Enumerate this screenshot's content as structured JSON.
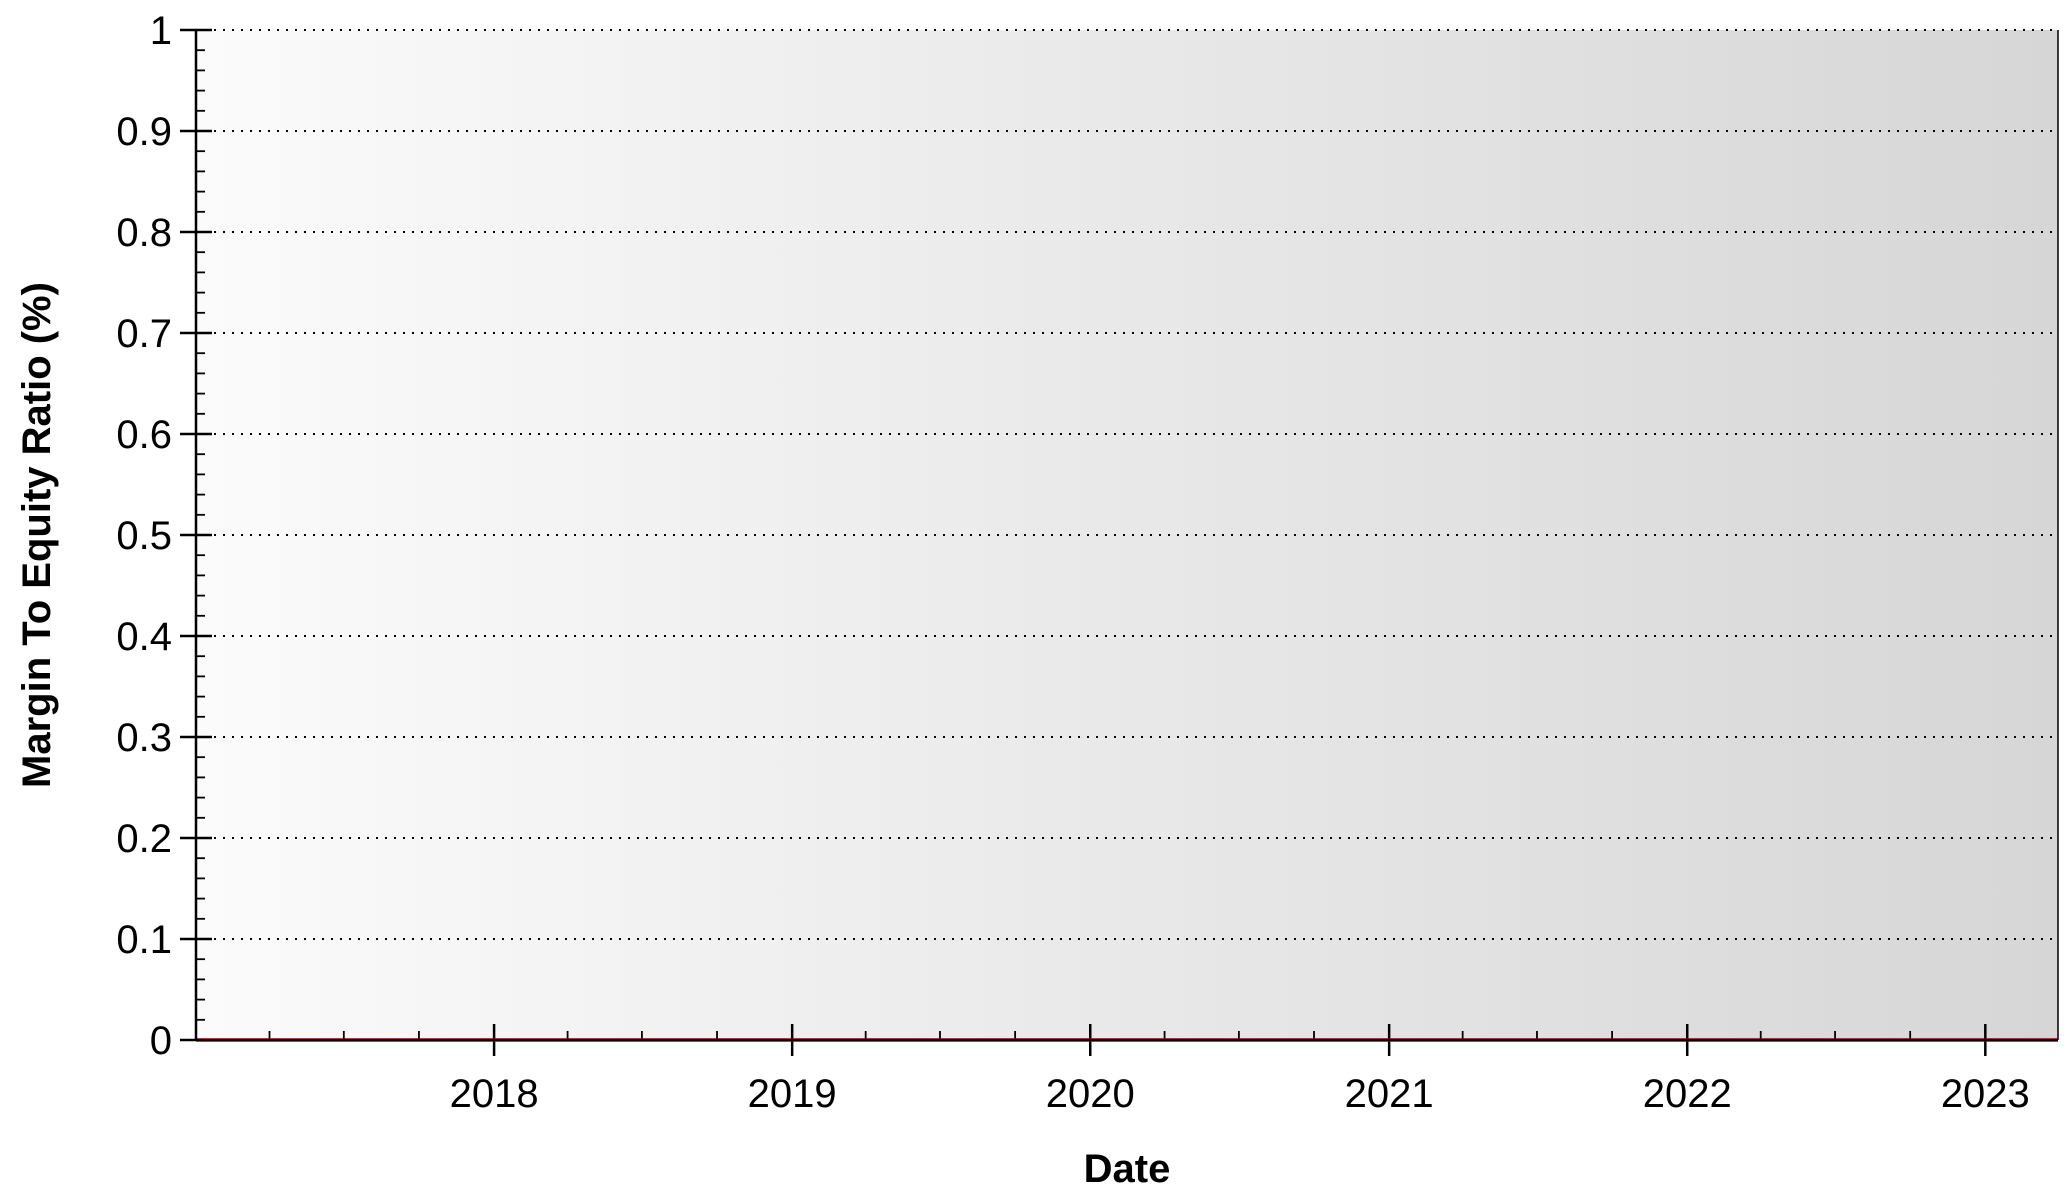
{
  "chart_data": {
    "type": "line",
    "title": "",
    "xlabel": "Date",
    "ylabel": "Margin To Equity Ratio (%)",
    "x_ticks": [
      "2018",
      "2019",
      "2020",
      "2021",
      "2022",
      "2023"
    ],
    "y_ticks": [
      "0",
      "0.1",
      "0.2",
      "0.3",
      "0.4",
      "0.5",
      "0.6",
      "0.7",
      "0.8",
      "0.9",
      "1"
    ],
    "xlim": [
      "2017-01-01",
      "2023-03-31"
    ],
    "ylim": [
      0,
      1
    ],
    "grid": true,
    "series": [
      {
        "x": [
          "2017-01-01",
          "2023-03-31"
        ],
        "values": [
          0,
          0
        ],
        "color": "#cc0000"
      }
    ]
  }
}
